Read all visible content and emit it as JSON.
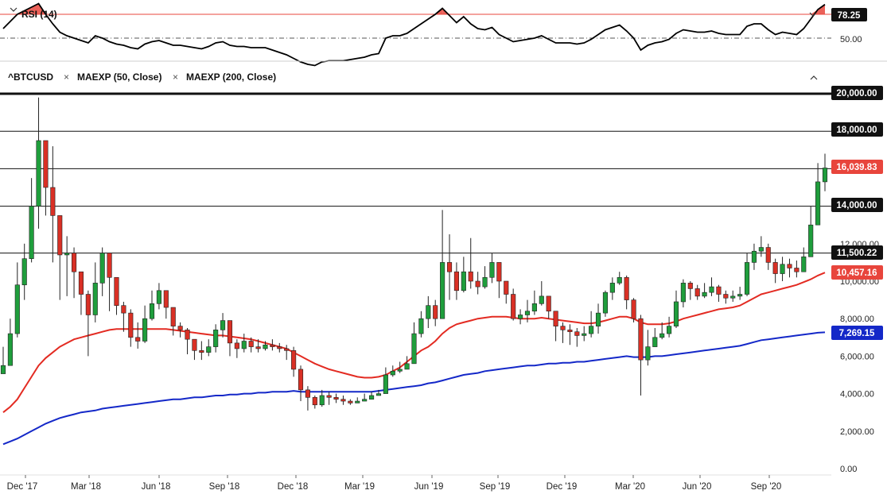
{
  "rsi_panel": {
    "label": "RSI (14)",
    "current_value": "78.25",
    "reference_tick": "50.00",
    "overbought_level": 70,
    "midline_level": 50,
    "line_color": "#000000",
    "overbought_color": "#e8453c"
  },
  "main_panel": {
    "symbol": "^BTCUSD",
    "indicator_1": "MAEXP (50, Close)",
    "indicator_2": "MAEXP (200, Close)",
    "collapse_icon": "chevron-up-icon",
    "remove_icon": "close-icon"
  },
  "colors": {
    "up_candle": "#1f9e3c",
    "down_candle": "#d93025",
    "ema50": "#e32b22",
    "ema200": "#1428c8",
    "last_price_tag": "#e8453c",
    "ema200_tag": "#1428c8",
    "level_tag": "#111111"
  },
  "price_tags": {
    "last_price": "16,039.83",
    "ema50": "10,457.16",
    "ema200": "7,269.15",
    "levels": [
      "20,000.00",
      "18,000.00",
      "14,000.00",
      "11,500.22"
    ]
  },
  "chart_data": {
    "type": "candlestick",
    "title": "^BTCUSD",
    "y_ticks": [
      "0.00",
      "2,000.00",
      "4,000.00",
      "6,000.00",
      "8,000.00",
      "10,000.00",
      "12,000.00",
      "14,000.00",
      "16,000.00",
      "18,000.00",
      "20,000.00"
    ],
    "x_ticks": [
      "Dec '17",
      "Mar '18",
      "Jun '18",
      "Sep '18",
      "Dec '18",
      "Mar '19",
      "Jun '19",
      "Sep '19",
      "Dec '19",
      "Mar '20",
      "Jun '20",
      "Sep '20"
    ],
    "ylim": [
      0,
      21000
    ],
    "horizontal_levels": [
      20000,
      18000,
      16000,
      14000,
      11500.22
    ],
    "weekly_close": [
      5500,
      7200,
      9800,
      11200,
      14000,
      17500,
      15000,
      13500,
      11400,
      11500,
      10500,
      9300,
      8200,
      9900,
      11500,
      10200,
      8700,
      8300,
      7000,
      6800,
      8000,
      8800,
      9500,
      8600,
      7600,
      7400,
      6900,
      6300,
      6200,
      6500,
      7400,
      7900,
      6700,
      6400,
      6800,
      6500,
      6400,
      6600,
      6500,
      6400,
      6300,
      5300,
      4200,
      3800,
      3400,
      3900,
      3800,
      3700,
      3600,
      3500,
      3600,
      3700,
      3900,
      4000,
      5000,
      5200,
      5300,
      5600,
      7200,
      8000,
      8700,
      8000,
      11000,
      10500,
      9500,
      10500,
      10000,
      9700,
      10200,
      11000,
      10000,
      9300,
      8000,
      8200,
      8400,
      8800,
      9200,
      8400,
      7600,
      7400,
      7300,
      7100,
      7200,
      7600,
      8300,
      9400,
      9900,
      10200,
      9000,
      8000,
      5800,
      6500,
      7000,
      7200,
      7600,
      8900,
      9900,
      9600,
      9200,
      9400,
      9700,
      9300,
      9100,
      9200,
      9300,
      11000,
      11600,
      11800,
      11000,
      10400,
      10900,
      10700,
      10500,
      11300,
      13000,
      15300,
      16039.83
    ],
    "weekly_high": [
      6500,
      8000,
      11000,
      12000,
      15500,
      19800,
      17500,
      17200,
      13500,
      12400,
      11800,
      10500,
      9500,
      11000,
      11800,
      11000,
      9500,
      8900,
      8500,
      7800,
      8700,
      9500,
      9900,
      9400,
      8000,
      7800,
      7500,
      6800,
      6800,
      6900,
      7700,
      8300,
      7700,
      6900,
      7200,
      7000,
      6900,
      6800,
      6900,
      6700,
      6600,
      6500,
      5500,
      4400,
      3900,
      4200,
      4100,
      4000,
      3900,
      3700,
      3800,
      4000,
      4100,
      4200,
      5400,
      5500,
      5700,
      6000,
      7800,
      8400,
      9200,
      9000,
      13800,
      12500,
      11000,
      11300,
      12300,
      10500,
      10800,
      11500,
      11000,
      10000,
      9600,
      8500,
      9000,
      9500,
      10000,
      9000,
      8400,
      7800,
      7700,
      7500,
      7600,
      8400,
      8800,
      9500,
      10200,
      10500,
      10300,
      9100,
      8200,
      7400,
      7500,
      7800,
      8100,
      9500,
      10100,
      10000,
      9800,
      9900,
      10200,
      9800,
      9500,
      9500,
      9700,
      11500,
      12000,
      12400,
      12000,
      11200,
      11300,
      11200,
      11100,
      11800,
      14000,
      16300,
      16800
    ],
    "weekly_low": [
      5400,
      5500,
      7000,
      9000,
      11000,
      12800,
      13500,
      11000,
      9000,
      9200,
      9100,
      8200,
      6000,
      7800,
      9200,
      8400,
      8200,
      7300,
      6500,
      6400,
      6700,
      7900,
      8500,
      8000,
      7100,
      7000,
      6100,
      5800,
      5800,
      6000,
      6200,
      7000,
      6000,
      5900,
      6200,
      6200,
      6200,
      6300,
      6300,
      6200,
      5800,
      4900,
      3600,
      3100,
      3200,
      3300,
      3400,
      3500,
      3400,
      3400,
      3500,
      3600,
      3800,
      3900,
      4000,
      4900,
      5100,
      5400,
      5600,
      7000,
      7500,
      7600,
      8000,
      9000,
      9000,
      9400,
      9600,
      9300,
      9600,
      9900,
      9100,
      8800,
      7900,
      7700,
      7800,
      8200,
      8700,
      8000,
      6800,
      6700,
      6600,
      6500,
      6800,
      7000,
      7200,
      8100,
      9000,
      9800,
      8500,
      7800,
      3900,
      5500,
      6500,
      6900,
      7000,
      7500,
      8600,
      9000,
      9000,
      9100,
      9200,
      8900,
      8800,
      8900,
      9000,
      9200,
      10600,
      11300,
      10600,
      9900,
      10000,
      10200,
      10200,
      10500,
      11300,
      13000,
      14800
    ],
    "ema50": [
      3000,
      3300,
      3700,
      4300,
      4900,
      5500,
      5900,
      6200,
      6500,
      6700,
      6900,
      7000,
      7100,
      7200,
      7300,
      7400,
      7450,
      7450,
      7450,
      7450,
      7450,
      7450,
      7450,
      7450,
      7400,
      7350,
      7300,
      7250,
      7200,
      7150,
      7100,
      7100,
      7050,
      7000,
      6950,
      6900,
      6800,
      6700,
      6600,
      6500,
      6400,
      6200,
      6000,
      5800,
      5600,
      5450,
      5300,
      5200,
      5100,
      5000,
      4900,
      4850,
      4850,
      4900,
      5000,
      5200,
      5400,
      5700,
      6000,
      6300,
      6500,
      6800,
      7200,
      7500,
      7700,
      7800,
      7900,
      8000,
      8050,
      8100,
      8100,
      8100,
      8050,
      8000,
      8000,
      8000,
      8050,
      8000,
      7950,
      7900,
      7850,
      7800,
      7750,
      7750,
      7800,
      7900,
      8000,
      8100,
      8100,
      8000,
      7800,
      7700,
      7700,
      7700,
      7750,
      7850,
      8000,
      8100,
      8200,
      8300,
      8400,
      8500,
      8550,
      8600,
      8700,
      8900,
      9100,
      9300,
      9400,
      9500,
      9600,
      9700,
      9800,
      9950,
      10100,
      10300,
      10457.16
    ],
    "ema200": [
      1300,
      1450,
      1600,
      1800,
      2000,
      2200,
      2400,
      2550,
      2700,
      2800,
      2900,
      3000,
      3050,
      3100,
      3200,
      3250,
      3300,
      3350,
      3400,
      3450,
      3500,
      3550,
      3600,
      3650,
      3700,
      3700,
      3750,
      3800,
      3800,
      3850,
      3900,
      3900,
      3950,
      3950,
      4000,
      4000,
      4050,
      4050,
      4100,
      4100,
      4100,
      4150,
      4100,
      4100,
      4100,
      4100,
      4100,
      4100,
      4100,
      4100,
      4100,
      4100,
      4100,
      4150,
      4200,
      4250,
      4300,
      4350,
      4400,
      4450,
      4550,
      4600,
      4700,
      4800,
      4900,
      5000,
      5050,
      5100,
      5200,
      5250,
      5300,
      5350,
      5400,
      5450,
      5500,
      5500,
      5550,
      5600,
      5600,
      5650,
      5650,
      5700,
      5700,
      5750,
      5800,
      5850,
      5900,
      5950,
      6000,
      5950,
      5950,
      5950,
      6000,
      6000,
      6050,
      6100,
      6150,
      6200,
      6250,
      6300,
      6350,
      6400,
      6450,
      6500,
      6550,
      6650,
      6750,
      6850,
      6900,
      6950,
      7000,
      7050,
      7100,
      7150,
      7200,
      7250,
      7269.15
    ],
    "rsi": [
      58,
      64,
      70,
      73,
      76,
      79,
      70,
      62,
      55,
      52,
      50,
      48,
      46,
      52,
      50,
      47,
      45,
      44,
      42,
      41,
      45,
      47,
      48,
      46,
      44,
      44,
      43,
      42,
      41,
      43,
      46,
      47,
      44,
      43,
      43,
      42,
      42,
      42,
      40,
      38,
      36,
      33,
      30,
      28,
      27,
      30,
      31,
      31,
      31,
      32,
      33,
      34,
      36,
      37,
      50,
      52,
      52,
      54,
      58,
      62,
      66,
      70,
      75,
      69,
      63,
      68,
      62,
      58,
      57,
      59,
      53,
      50,
      47,
      48,
      49,
      50,
      52,
      49,
      46,
      46,
      46,
      45,
      46,
      49,
      53,
      57,
      59,
      61,
      56,
      50,
      40,
      44,
      46,
      47,
      49,
      54,
      57,
      56,
      55,
      55,
      56,
      54,
      53,
      53,
      53,
      60,
      62,
      62,
      57,
      53,
      55,
      54,
      53,
      58,
      66,
      74,
      78.25
    ]
  }
}
